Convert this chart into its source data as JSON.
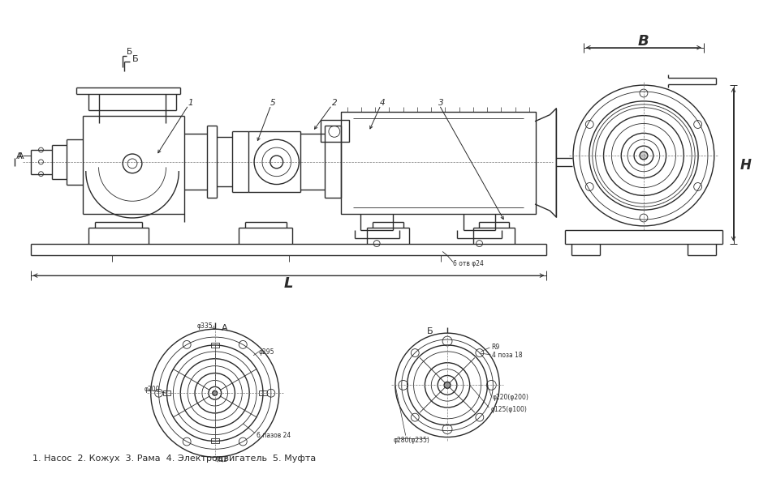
{
  "bg_color": "#ffffff",
  "line_color": "#2a2a2a",
  "caption": "1. Насос  2. Кожух  3. Рама  4. Электродвигатель  5. Муфта",
  "B_label": "B",
  "H_label": "H",
  "L_label": "L",
  "phi335": "φ335",
  "phi295": "φ295",
  "phi200": "φ200",
  "r12": "R12",
  "slots6": "6 пазов 24",
  "phi280": "φ280(φ235)",
  "phi220": "φ220(φ200)",
  "phi125": "φ125(φ100)",
  "r9": "R9",
  "slots4": "4 поза 18",
  "holes6": "6 отв φ24",
  "part1": "1",
  "part2": "2",
  "part3": "3",
  "part4": "4",
  "part5": "5"
}
